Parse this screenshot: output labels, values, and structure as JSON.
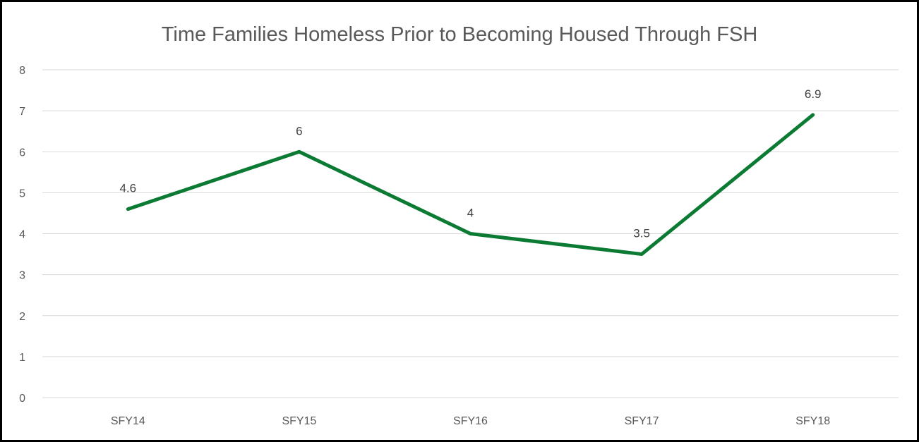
{
  "chart_data": {
    "type": "line",
    "title": "Time Families Homeless Prior to Becoming Housed Through FSH",
    "xlabel": "",
    "ylabel": "",
    "categories": [
      "SFY14",
      "SFY15",
      "SFY16",
      "SFY17",
      "SFY18"
    ],
    "series": [
      {
        "values": [
          4.6,
          6,
          4,
          3.5,
          6.9
        ],
        "color": "#0b7a33"
      }
    ],
    "data_labels": [
      "4.6",
      "6",
      "4",
      "3.5",
      "6.9"
    ],
    "ylim": [
      0,
      8
    ],
    "yticks": [
      "0",
      "1",
      "2",
      "3",
      "4",
      "5",
      "6",
      "7",
      "8"
    ],
    "grid": true,
    "legend": "none"
  }
}
